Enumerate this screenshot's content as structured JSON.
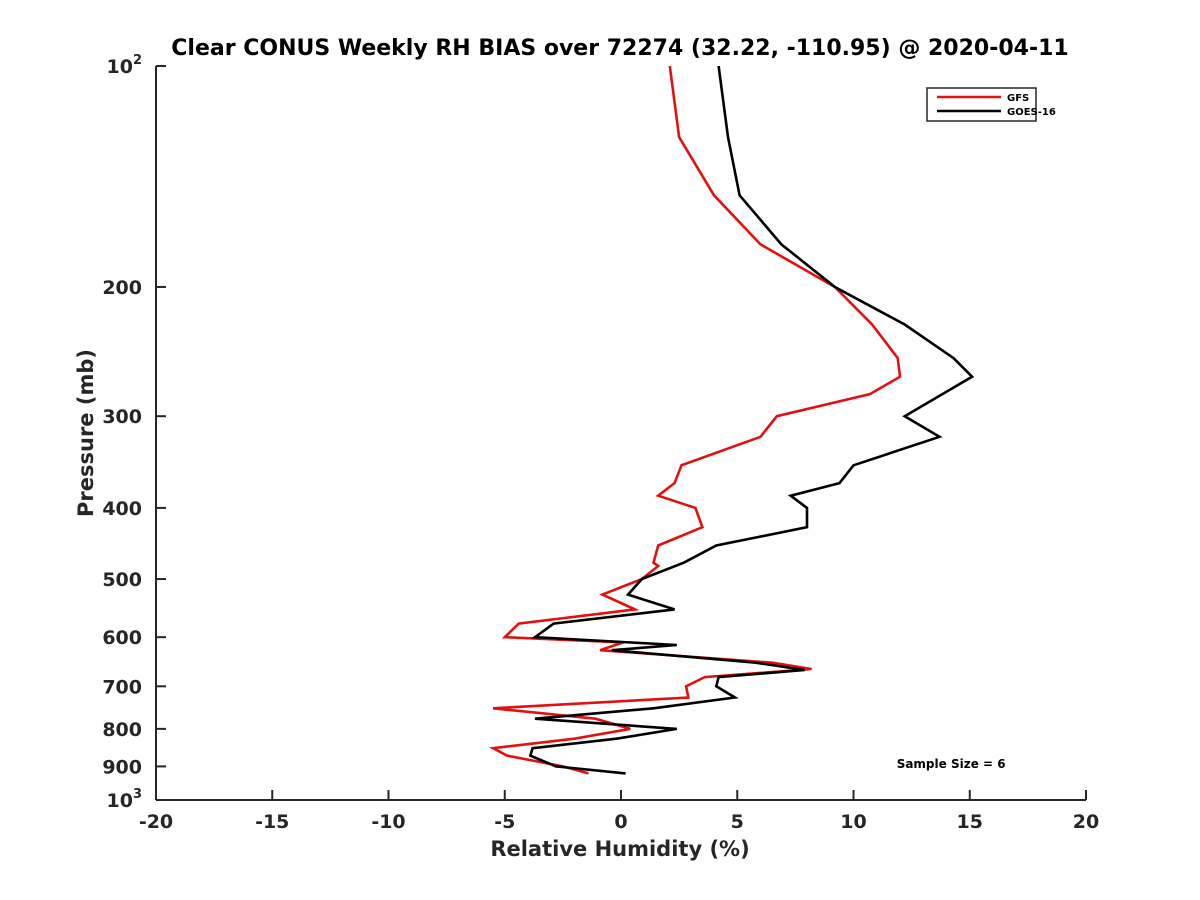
{
  "chart_data": {
    "type": "line",
    "title": "Clear CONUS Weekly RH BIAS over 72274 (32.22, -110.95) @ 2020-04-11",
    "xlabel": "Relative Humidity (%)",
    "ylabel": "Pressure (mb)",
    "xlim": [
      -20,
      20
    ],
    "ylim": [
      100,
      1000
    ],
    "y_scale": "log",
    "y_reversed": true,
    "x_ticks": [
      -20,
      -15,
      -10,
      -5,
      0,
      5,
      10,
      15,
      20
    ],
    "x_tick_labels": [
      "-20",
      "-15",
      "-10",
      "-5",
      "0",
      "5",
      "10",
      "15",
      "20"
    ],
    "y_ticks": [
      100,
      200,
      300,
      400,
      500,
      600,
      700,
      800,
      900,
      1000
    ],
    "y_tick_labels": [
      {
        "base": "10",
        "exp": "2"
      },
      {
        "base": "200",
        "exp": ""
      },
      {
        "base": "300",
        "exp": ""
      },
      {
        "base": "400",
        "exp": ""
      },
      {
        "base": "500",
        "exp": ""
      },
      {
        "base": "600",
        "exp": ""
      },
      {
        "base": "700",
        "exp": ""
      },
      {
        "base": "800",
        "exp": ""
      },
      {
        "base": "900",
        "exp": ""
      },
      {
        "base": "10",
        "exp": "3"
      }
    ],
    "grid": false,
    "legend_position": "top-right",
    "series": [
      {
        "name": "GFS",
        "color": "#e0110f",
        "points": [
          [
            2.1,
            100
          ],
          [
            2.5,
            125
          ],
          [
            4.0,
            150
          ],
          [
            6.0,
            175
          ],
          [
            9.2,
            200
          ],
          [
            10.8,
            225
          ],
          [
            11.9,
            250
          ],
          [
            12.0,
            265
          ],
          [
            10.7,
            280
          ],
          [
            6.7,
            300
          ],
          [
            6.0,
            320
          ],
          [
            2.6,
            350
          ],
          [
            2.3,
            370
          ],
          [
            1.6,
            385
          ],
          [
            3.2,
            400
          ],
          [
            3.5,
            425
          ],
          [
            1.6,
            450
          ],
          [
            1.4,
            475
          ],
          [
            1.6,
            480
          ],
          [
            0.9,
            500
          ],
          [
            -0.8,
            525
          ],
          [
            0.6,
            550
          ],
          [
            -4.4,
            575
          ],
          [
            -5.0,
            600
          ],
          [
            0.1,
            610
          ],
          [
            -0.9,
            625
          ],
          [
            6.5,
            650
          ],
          [
            8.2,
            663
          ],
          [
            3.6,
            680
          ],
          [
            2.8,
            700
          ],
          [
            2.9,
            725
          ],
          [
            -5.5,
            750
          ],
          [
            -1.1,
            775
          ],
          [
            0.4,
            800
          ],
          [
            -2.0,
            825
          ],
          [
            -5.5,
            850
          ],
          [
            -4.9,
            870
          ],
          [
            -2.5,
            900
          ],
          [
            -1.4,
            920
          ]
        ]
      },
      {
        "name": "GOES-16",
        "color": "#000000",
        "points": [
          [
            4.2,
            100
          ],
          [
            4.6,
            125
          ],
          [
            5.1,
            150
          ],
          [
            6.9,
            175
          ],
          [
            9.2,
            200
          ],
          [
            12.2,
            225
          ],
          [
            14.3,
            250
          ],
          [
            15.1,
            265
          ],
          [
            12.2,
            300
          ],
          [
            13.7,
            320
          ],
          [
            10.0,
            350
          ],
          [
            9.4,
            370
          ],
          [
            7.3,
            385
          ],
          [
            8.0,
            400
          ],
          [
            8.0,
            425
          ],
          [
            4.1,
            450
          ],
          [
            2.7,
            475
          ],
          [
            0.9,
            500
          ],
          [
            0.3,
            525
          ],
          [
            2.3,
            550
          ],
          [
            -2.9,
            575
          ],
          [
            -3.7,
            600
          ],
          [
            2.4,
            615
          ],
          [
            -0.4,
            625
          ],
          [
            5.8,
            650
          ],
          [
            7.9,
            665
          ],
          [
            4.2,
            680
          ],
          [
            4.1,
            700
          ],
          [
            4.9,
            725
          ],
          [
            1.4,
            750
          ],
          [
            -3.7,
            775
          ],
          [
            2.4,
            800
          ],
          [
            -0.2,
            825
          ],
          [
            -3.8,
            850
          ],
          [
            -3.9,
            870
          ],
          [
            -2.8,
            900
          ],
          [
            0.2,
            920
          ]
        ]
      }
    ],
    "annotations": [
      {
        "text": "Sample Size = 6",
        "x": 14.2,
        "y": 890
      }
    ]
  }
}
